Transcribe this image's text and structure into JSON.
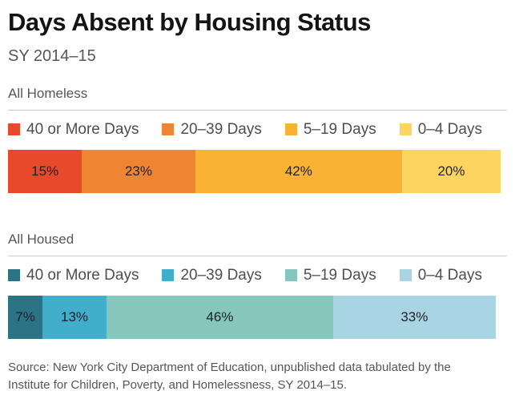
{
  "header": {
    "title": "Days Absent by Housing Status",
    "subtitle": "SY 2014–15"
  },
  "source_note": "Source: New York City Department of Education, unpublished data tabulated by the Institute for Children, Poverty, and Homelessness, SY 2014–15.",
  "colors": {
    "homeless_palette": [
      "#E8492B",
      "#EF8432",
      "#F9B233",
      "#FBD55F"
    ],
    "housed_palette": [
      "#2C7386",
      "#41AECB",
      "#85C6BD",
      "#A9D4E4"
    ],
    "title_text": "#141414",
    "muted_text": "#54565B",
    "divider": "#CBCBCB"
  },
  "chart_data": [
    {
      "type": "bar",
      "orientation": "horizontal-stacked",
      "title": "All Homeless",
      "categories": [
        "40 or More Days",
        "20–39 Days",
        "5–19 Days",
        "0–4 Days"
      ],
      "values": [
        15,
        23,
        42,
        20
      ],
      "data_labels": [
        "15%",
        "23%",
        "42%",
        "20%"
      ],
      "colors": [
        "#E8492B",
        "#EF8432",
        "#F9B233",
        "#FBD55F"
      ],
      "xlim": [
        0,
        100
      ],
      "legend_position": "top",
      "grid": false
    },
    {
      "type": "bar",
      "orientation": "horizontal-stacked",
      "title": "All Housed",
      "categories": [
        "40 or More Days",
        "20–39 Days",
        "5–19 Days",
        "0–4 Days"
      ],
      "values": [
        7,
        13,
        46,
        33
      ],
      "data_labels": [
        "7%",
        "13%",
        "46%",
        "33%"
      ],
      "colors": [
        "#2C7386",
        "#41AECB",
        "#85C6BD",
        "#A9D4E4"
      ],
      "xlim": [
        0,
        100
      ],
      "legend_position": "top",
      "grid": false
    }
  ]
}
